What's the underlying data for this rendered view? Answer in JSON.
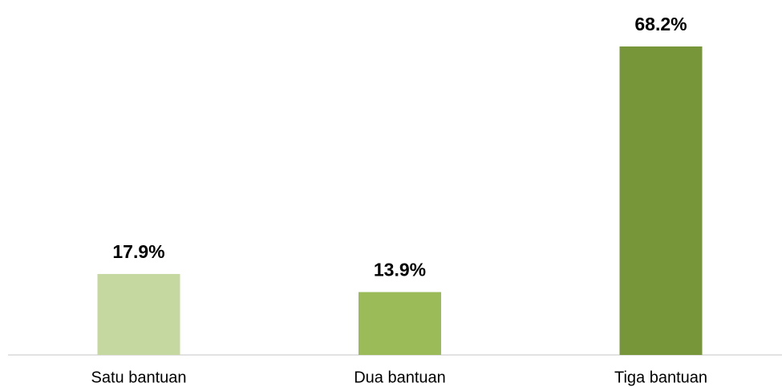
{
  "chart_data": {
    "type": "bar",
    "categories": [
      "Satu bantuan",
      "Dua bantuan",
      "Tiga bantuan"
    ],
    "values": [
      17.9,
      13.9,
      68.2
    ],
    "value_labels": [
      "17.9%",
      "13.9%",
      "68.2%"
    ],
    "colors": [
      "#c5d89f",
      "#9bbb59",
      "#77963a"
    ],
    "grid": false
  }
}
